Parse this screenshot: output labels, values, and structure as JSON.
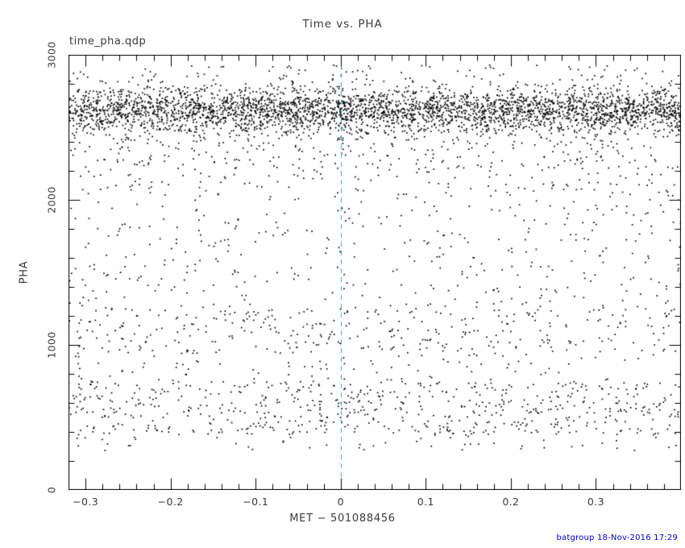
{
  "page": {
    "annotation": "time_pha.qdp",
    "footer": "batgroup 18-Nov-2016 17:29",
    "footer_color": "#0000cd"
  },
  "chart_data": {
    "type": "scatter",
    "title": "Time vs. PHA",
    "xlabel": "MET − 501088456",
    "ylabel": "PHA",
    "xlim": [
      -0.32,
      0.4
    ],
    "ylim": [
      0,
      3000
    ],
    "x_major_ticks": [
      -0.3,
      -0.2,
      -0.1,
      0,
      0.1,
      0.2,
      0.3
    ],
    "x_tick_labels": [
      "−0.3",
      "−0.2",
      "−0.1",
      "0",
      "0.1",
      "0.2",
      "0.3"
    ],
    "x_minor_step": 0.02,
    "y_major_ticks": [
      0,
      1000,
      2000,
      3000
    ],
    "y_tick_labels": [
      "0",
      "1000",
      "2000",
      "3000"
    ],
    "y_minor_step": 200,
    "grid": false,
    "legend": null,
    "point_color": "#000000",
    "point_size": 1.7,
    "frame_color": "#000000",
    "vline": {
      "x": 0,
      "color": "#3fa9a9",
      "dash": [
        6,
        5
      ]
    },
    "seed": 20161118,
    "scatter_clusters": [
      {
        "name": "dense-band",
        "x_range": [
          -0.32,
          0.4
        ],
        "y_dist": "gaussian",
        "y_mean": 2615,
        "y_sigma": 75,
        "count": 3200
      },
      {
        "name": "band-lower-tail",
        "x_range": [
          -0.32,
          0.4
        ],
        "y_dist": "gaussian",
        "y_mean": 2450,
        "y_sigma": 160,
        "count": 500
      },
      {
        "name": "upper-sparse",
        "x_range": [
          -0.32,
          0.4
        ],
        "y_dist": "uniform",
        "y_range": [
          2720,
          2930
        ],
        "count": 160
      },
      {
        "name": "mid-scatter",
        "x_range": [
          -0.32,
          0.4
        ],
        "y_dist": "uniform",
        "y_range": [
          750,
          2300
        ],
        "count": 760
      },
      {
        "name": "kev-band",
        "x_range": [
          -0.32,
          0.4
        ],
        "y_dist": "uniform",
        "y_range": [
          950,
          1250
        ],
        "count": 180
      },
      {
        "name": "low-band",
        "x_range": [
          -0.32,
          0.4
        ],
        "y_dist": "uniform",
        "y_range": [
          380,
          750
        ],
        "count": 620
      },
      {
        "name": "low-sparse",
        "x_range": [
          -0.32,
          0.4
        ],
        "y_dist": "uniform",
        "y_range": [
          270,
          380
        ],
        "count": 50
      }
    ]
  }
}
